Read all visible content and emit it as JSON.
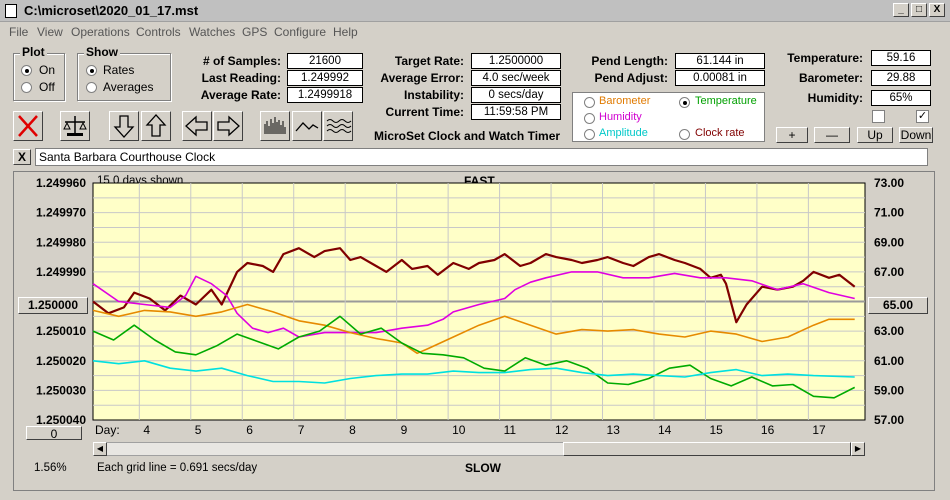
{
  "window": {
    "title": "C:\\microset\\2020_01_17.mst",
    "minimize": "_",
    "maximize": "□",
    "close": "X"
  },
  "menu": [
    "File",
    "View",
    "Operations",
    "Controls",
    "Watches",
    "GPS",
    "Configure",
    "Help"
  ],
  "plot_group": {
    "title": "Plot",
    "options": [
      "On",
      "Off"
    ],
    "selected": "On"
  },
  "show_group": {
    "title": "Show",
    "options": [
      "Rates",
      "Averages"
    ],
    "selected": "Rates"
  },
  "stats_left": [
    {
      "label": "# of Samples:",
      "value": "21600"
    },
    {
      "label": "Last Reading:",
      "value": "1.249992"
    },
    {
      "label": "Average Rate:",
      "value": "1.2499918"
    }
  ],
  "stats_mid": [
    {
      "label": "Target Rate:",
      "value": "1.2500000"
    },
    {
      "label": "Average Error:",
      "value": "4.0 sec/week"
    },
    {
      "label": "Instability:",
      "value": "0 secs/day"
    },
    {
      "label": "Current Time:",
      "value": "11:59:58 PM"
    }
  ],
  "app_caption": "MicroSet Clock and Watch Timer",
  "pend": [
    {
      "label": "Pend Length:",
      "value": "61.144 in"
    },
    {
      "label": "Pend Adjust:",
      "value": "0.00081 in"
    }
  ],
  "sensor_options": [
    {
      "label": "Barometer",
      "color": "#e07a00",
      "selected": false
    },
    {
      "label": "Temperature",
      "color": "#00a000",
      "selected": true
    },
    {
      "label": "Humidity",
      "color": "#d000d0",
      "selected": false
    },
    {
      "label": "Amplitude",
      "color": "#00c8c8",
      "selected": false
    },
    {
      "label": "Clock rate",
      "color": "#800000",
      "selected": false
    }
  ],
  "environment": [
    {
      "label": "Temperature:",
      "value": "59.16"
    },
    {
      "label": "Barometer:",
      "value": "29.88"
    },
    {
      "label": "Humidity:",
      "value": "65%"
    }
  ],
  "env_checks": [
    false,
    true
  ],
  "env_buttons": [
    "+",
    "—",
    "Up",
    "Down"
  ],
  "clock_name": "Santa Barbara Courthouse Clock",
  "clear_label": "X",
  "chart_header": {
    "left": "15.0 days shown",
    "top": "FAST",
    "bottom": "SLOW"
  },
  "reference_left": "1.250000",
  "reference_right": "65.00",
  "zero_button": "0",
  "percent_label": "1.56%",
  "grid_note": "Each grid line = 0.691 secs/day",
  "chart_data": {
    "type": "line",
    "title": "",
    "xlabel": "Day:",
    "x_ticks": [
      "4",
      "5",
      "6",
      "7",
      "8",
      "9",
      "10",
      "11",
      "12",
      "13",
      "14",
      "15",
      "16",
      "17"
    ],
    "x_range": [
      3.1,
      18.1
    ],
    "y_left": {
      "ticks": [
        "1.249960",
        "1.249970",
        "1.249980",
        "1.249990",
        "1.250010",
        "1.250020",
        "1.250030",
        "1.250040"
      ],
      "range": [
        1.24996,
        1.25004
      ],
      "inverted": true
    },
    "y_right": {
      "ticks": [
        "73.00",
        "71.00",
        "69.00",
        "67.00",
        "63.00",
        "61.00",
        "59.00",
        "57.00"
      ],
      "range": [
        57,
        73
      ]
    },
    "grid": true,
    "background": "#ffffc8",
    "series": [
      {
        "name": "Clock rate",
        "color": "#800000",
        "axis": "left",
        "width": 2.2,
        "points": [
          [
            3.1,
            1.25
          ],
          [
            3.4,
            1.250004
          ],
          [
            3.7,
            1.250002
          ],
          [
            3.9,
            1.249997
          ],
          [
            4.2,
            1.249999
          ],
          [
            4.5,
            1.250003
          ],
          [
            4.8,
            1.249998
          ],
          [
            5.1,
            1.250001
          ],
          [
            5.4,
            1.249996
          ],
          [
            5.6,
            1.250001
          ],
          [
            5.9,
            1.24999
          ],
          [
            6.1,
            1.249987
          ],
          [
            6.4,
            1.249988
          ],
          [
            6.6,
            1.24999
          ],
          [
            6.8,
            1.249984
          ],
          [
            7.1,
            1.249982
          ],
          [
            7.4,
            1.249985
          ],
          [
            7.6,
            1.249983
          ],
          [
            7.9,
            1.249982
          ],
          [
            8.1,
            1.249986
          ],
          [
            8.3,
            1.249985
          ],
          [
            8.6,
            1.249988
          ],
          [
            8.8,
            1.24999
          ],
          [
            9.1,
            1.249986
          ],
          [
            9.3,
            1.249989
          ],
          [
            9.6,
            1.249988
          ],
          [
            9.8,
            1.249991
          ],
          [
            10.1,
            1.249987
          ],
          [
            10.4,
            1.249989
          ],
          [
            10.6,
            1.249987
          ],
          [
            10.9,
            1.249986
          ],
          [
            11.1,
            1.249984
          ],
          [
            11.4,
            1.249988
          ],
          [
            11.6,
            1.249987
          ],
          [
            11.9,
            1.249984
          ],
          [
            12.1,
            1.249985
          ],
          [
            12.4,
            1.249986
          ],
          [
            12.6,
            1.249987
          ],
          [
            12.9,
            1.249986
          ],
          [
            13.1,
            1.249985
          ],
          [
            13.4,
            1.249987
          ],
          [
            13.6,
            1.249988
          ],
          [
            13.9,
            1.249985
          ],
          [
            14.1,
            1.249984
          ],
          [
            14.4,
            1.249986
          ],
          [
            14.6,
            1.249987
          ],
          [
            14.9,
            1.249989
          ],
          [
            15.1,
            1.249992
          ],
          [
            15.3,
            1.249991
          ],
          [
            15.4,
            1.249994
          ],
          [
            15.6,
            1.250007
          ],
          [
            15.8,
            1.250001
          ],
          [
            16.1,
            1.249995
          ],
          [
            16.4,
            1.249996
          ],
          [
            16.7,
            1.249995
          ],
          [
            16.9,
            1.249993
          ],
          [
            17.1,
            1.24999
          ],
          [
            17.4,
            1.249992
          ],
          [
            17.6,
            1.249991
          ],
          [
            17.9,
            1.249995
          ]
        ]
      },
      {
        "name": "Humidity",
        "color": "#e000e0",
        "axis": "right",
        "width": 1.6,
        "points": [
          [
            3.1,
            66.2
          ],
          [
            3.6,
            65.0
          ],
          [
            4.1,
            64.8
          ],
          [
            4.6,
            64.6
          ],
          [
            4.9,
            65.4
          ],
          [
            5.1,
            66.7
          ],
          [
            5.4,
            66.2
          ],
          [
            5.7,
            65.4
          ],
          [
            5.9,
            64.2
          ],
          [
            6.2,
            63.2
          ],
          [
            6.5,
            62.9
          ],
          [
            6.8,
            63.2
          ],
          [
            7.1,
            62.6
          ],
          [
            7.6,
            62.9
          ],
          [
            8.1,
            62.9
          ],
          [
            8.6,
            62.9
          ],
          [
            9.1,
            63.2
          ],
          [
            9.6,
            63.4
          ],
          [
            9.9,
            63.8
          ],
          [
            10.1,
            64.3
          ],
          [
            10.6,
            64.8
          ],
          [
            11.1,
            65.2
          ],
          [
            11.3,
            65.8
          ],
          [
            11.6,
            66.3
          ],
          [
            11.9,
            66.6
          ],
          [
            12.4,
            67.0
          ],
          [
            12.9,
            67.0
          ],
          [
            13.4,
            66.6
          ],
          [
            13.9,
            66.6
          ],
          [
            14.4,
            66.9
          ],
          [
            14.9,
            66.6
          ],
          [
            15.4,
            66.6
          ],
          [
            15.9,
            66.4
          ],
          [
            16.4,
            65.8
          ],
          [
            16.9,
            66.2
          ],
          [
            17.4,
            65.6
          ],
          [
            17.9,
            65.2
          ]
        ]
      },
      {
        "name": "Barometer",
        "color": "#e68a00",
        "axis": "right",
        "width": 1.6,
        "points": [
          [
            3.1,
            64.4
          ],
          [
            3.6,
            64.0
          ],
          [
            4.1,
            64.4
          ],
          [
            4.6,
            64.3
          ],
          [
            5.1,
            64.0
          ],
          [
            5.6,
            64.3
          ],
          [
            6.1,
            64.8
          ],
          [
            6.6,
            64.3
          ],
          [
            7.1,
            63.7
          ],
          [
            7.6,
            63.4
          ],
          [
            8.1,
            62.9
          ],
          [
            8.6,
            62.5
          ],
          [
            9.1,
            62.2
          ],
          [
            9.4,
            61.5
          ],
          [
            9.6,
            61.8
          ],
          [
            10.1,
            62.6
          ],
          [
            10.6,
            63.4
          ],
          [
            11.1,
            64.0
          ],
          [
            11.6,
            63.4
          ],
          [
            12.1,
            62.8
          ],
          [
            12.6,
            63.1
          ],
          [
            13.1,
            63.0
          ],
          [
            13.6,
            63.1
          ],
          [
            14.1,
            62.8
          ],
          [
            14.6,
            62.6
          ],
          [
            15.1,
            63.0
          ],
          [
            15.6,
            62.8
          ],
          [
            16.1,
            62.3
          ],
          [
            16.6,
            62.6
          ],
          [
            17.1,
            63.4
          ],
          [
            17.4,
            63.8
          ],
          [
            17.9,
            63.8
          ]
        ]
      },
      {
        "name": "Temperature",
        "color": "#00aa00",
        "axis": "right",
        "width": 1.6,
        "points": [
          [
            3.1,
            63.0
          ],
          [
            3.5,
            62.4
          ],
          [
            3.9,
            63.4
          ],
          [
            4.3,
            62.4
          ],
          [
            4.7,
            61.6
          ],
          [
            5.1,
            61.4
          ],
          [
            5.5,
            62.0
          ],
          [
            5.9,
            62.8
          ],
          [
            6.3,
            62.3
          ],
          [
            6.7,
            61.8
          ],
          [
            7.1,
            62.6
          ],
          [
            7.5,
            63.0
          ],
          [
            7.9,
            64.0
          ],
          [
            8.3,
            62.8
          ],
          [
            8.7,
            63.2
          ],
          [
            9.1,
            62.2
          ],
          [
            9.5,
            61.5
          ],
          [
            9.9,
            61.4
          ],
          [
            10.3,
            61.2
          ],
          [
            10.7,
            60.5
          ],
          [
            11.1,
            60.3
          ],
          [
            11.5,
            61.2
          ],
          [
            11.9,
            60.7
          ],
          [
            12.3,
            61.0
          ],
          [
            12.7,
            60.5
          ],
          [
            13.1,
            59.5
          ],
          [
            13.5,
            59.4
          ],
          [
            13.9,
            59.8
          ],
          [
            14.3,
            60.5
          ],
          [
            14.7,
            60.7
          ],
          [
            15.1,
            59.8
          ],
          [
            15.5,
            59.3
          ],
          [
            15.9,
            59.9
          ],
          [
            16.3,
            59.3
          ],
          [
            16.7,
            59.4
          ],
          [
            17.1,
            58.6
          ],
          [
            17.5,
            58.5
          ],
          [
            17.9,
            59.2
          ]
        ]
      },
      {
        "name": "Amplitude",
        "color": "#00e0e0",
        "axis": "right",
        "width": 1.6,
        "points": [
          [
            3.1,
            61.0
          ],
          [
            3.6,
            60.8
          ],
          [
            4.1,
            61.0
          ],
          [
            4.6,
            60.5
          ],
          [
            5.1,
            60.3
          ],
          [
            5.6,
            60.5
          ],
          [
            6.1,
            60.0
          ],
          [
            6.6,
            59.6
          ],
          [
            7.1,
            59.6
          ],
          [
            7.6,
            59.5
          ],
          [
            8.1,
            59.8
          ],
          [
            8.6,
            60.0
          ],
          [
            9.1,
            60.1
          ],
          [
            9.6,
            60.1
          ],
          [
            10.1,
            60.3
          ],
          [
            10.6,
            60.2
          ],
          [
            11.1,
            60.2
          ],
          [
            11.6,
            60.4
          ],
          [
            12.1,
            60.5
          ],
          [
            12.6,
            60.2
          ],
          [
            13.1,
            60.0
          ],
          [
            13.6,
            60.1
          ],
          [
            14.1,
            60.0
          ],
          [
            14.6,
            59.9
          ],
          [
            15.1,
            60.2
          ],
          [
            15.6,
            60.4
          ],
          [
            16.1,
            60.0
          ],
          [
            16.6,
            60.1
          ],
          [
            17.1,
            60.0
          ],
          [
            17.9,
            59.9
          ]
        ]
      }
    ]
  }
}
